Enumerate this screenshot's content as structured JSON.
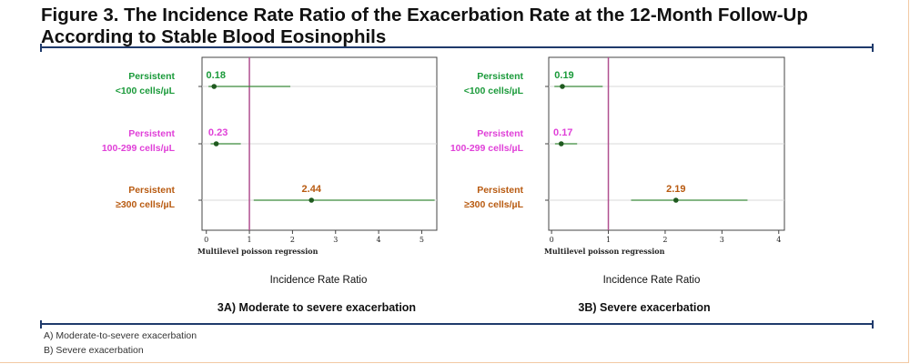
{
  "figure": {
    "title_line1": "Figure 3. The Incidence Rate Ratio of the Exacerbation Rate at the 12-Month Follow-Up",
    "title_line2": "According to Stable Blood Eosinophils"
  },
  "footnotes": [
    "A) Moderate-to-severe exacerbation",
    "B) Severe exacerbation"
  ],
  "colors": {
    "green": "#1a9a3a",
    "magenta": "#e040d8",
    "orange": "#b85a10",
    "point": "#1f5a1f",
    "ci": "#3a8a3a",
    "refline": "#b05090",
    "rule": "#1f3a6b"
  },
  "chart_data": [
    {
      "type": "forest",
      "categories": [
        {
          "line1": "Persistent",
          "line2": "<100 cells/µL",
          "color": "green"
        },
        {
          "line1": "Persistent",
          "line2": "100-299 cells/µL",
          "color": "magenta"
        },
        {
          "line1": "Persistent",
          "line2": "≥300 cells/µL",
          "color": "orange"
        }
      ],
      "estimates": [
        0.18,
        0.23,
        2.44
      ],
      "labels": [
        "0.18",
        "0.23",
        "2.44"
      ],
      "ci_low": [
        0.05,
        0.1,
        1.1
      ],
      "ci_high": [
        1.95,
        0.8,
        5.3
      ],
      "xlim": [
        -0.1,
        5.35
      ],
      "xticks": [
        0,
        1,
        2,
        3,
        4,
        5
      ],
      "tick_labels": [
        "0",
        "1",
        "2",
        "3",
        "4",
        "5"
      ],
      "reference_line": 1,
      "method_label": "Multilevel poisson regression",
      "xlabel": "Incidence Rate Ratio",
      "caption": "3A) Moderate to severe exacerbation"
    },
    {
      "type": "forest",
      "categories": [
        {
          "line1": "Persistent",
          "line2": "<100 cells/µL",
          "color": "green"
        },
        {
          "line1": "Persistent",
          "line2": "100-299 cells/µL",
          "color": "magenta"
        },
        {
          "line1": "Persistent",
          "line2": "≥300 cells/µL",
          "color": "orange"
        }
      ],
      "estimates": [
        0.19,
        0.17,
        2.19
      ],
      "labels": [
        "0.19",
        "0.17",
        "2.19"
      ],
      "ci_low": [
        0.05,
        0.06,
        1.4
      ],
      "ci_high": [
        0.9,
        0.45,
        3.45
      ],
      "xlim": [
        -0.05,
        4.1
      ],
      "xticks": [
        0,
        1,
        2,
        3,
        4
      ],
      "tick_labels": [
        "0",
        "1",
        "2",
        "3",
        "4"
      ],
      "reference_line": 1,
      "method_label": "Multilevel poisson regression",
      "xlabel": "Incidence Rate Ratio",
      "caption": "3B) Severe exacerbation"
    }
  ]
}
